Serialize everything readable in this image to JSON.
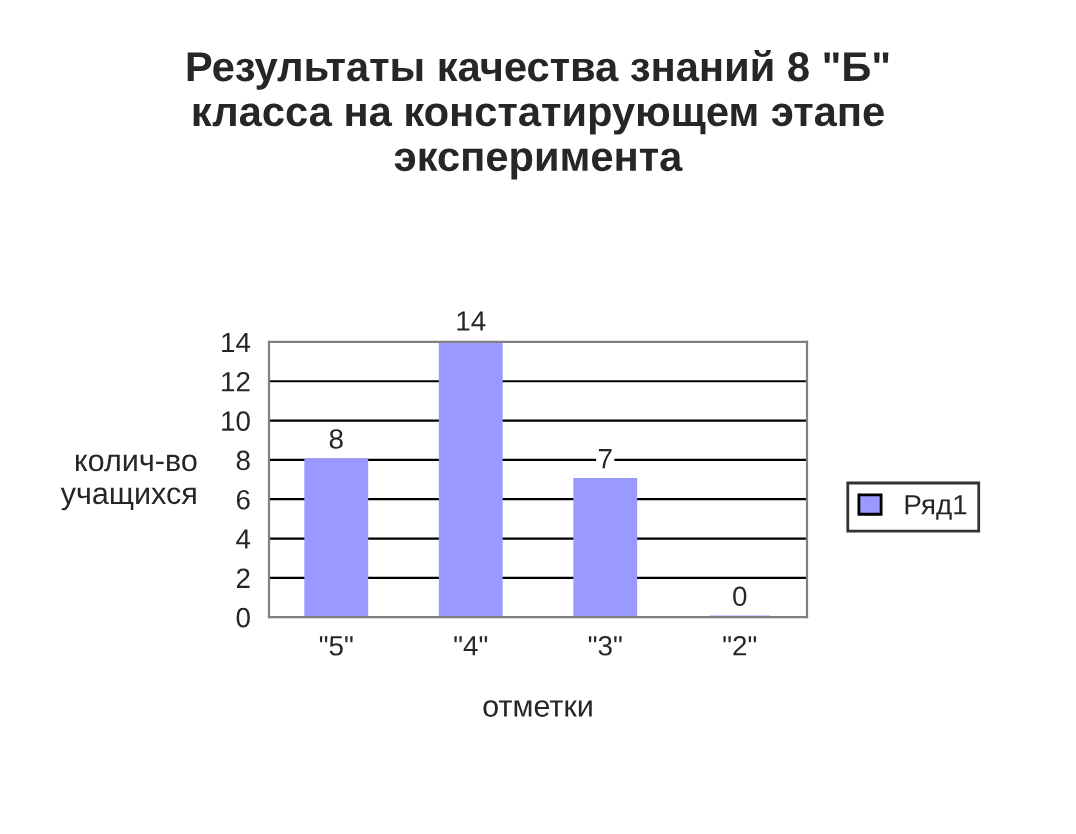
{
  "chart_data": {
    "type": "bar",
    "title": "Результаты качества знаний 8 \"Б\"\nкласса на констатирующем этапе\nэксперимента",
    "xlabel": "отметки",
    "ylabel": "колич-во\nучащихся",
    "categories": [
      "\"5\"",
      "\"4\"",
      "\"3\"",
      "\"2\""
    ],
    "series": [
      {
        "name": "Ряд1",
        "color": "#9999ff",
        "values": [
          8,
          14,
          7,
          0
        ]
      }
    ],
    "ylim": [
      0,
      14
    ],
    "yticks": [
      0,
      2,
      4,
      6,
      8,
      10,
      12,
      14
    ],
    "grid": "y",
    "legend": "right",
    "data_labels": true
  }
}
